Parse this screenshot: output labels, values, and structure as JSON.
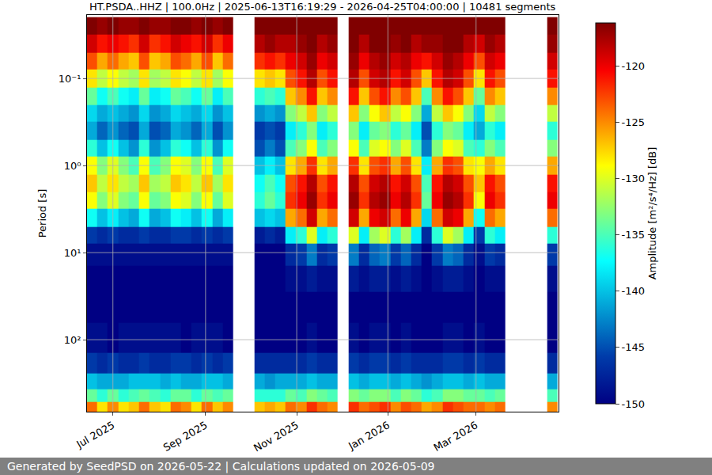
{
  "chart_data": {
    "type": "heatmap",
    "title": "HT.PSDA..HHZ | 100.0Hz | 2025-06-13T16:19:29 - 2026-04-25T04:00:00 | 10481 segments",
    "ylabel": "Period [s]",
    "colorbar_label": "Amplitude [m²/s⁴/Hz] [dB]",
    "footer": "Generated by SeedPSD on 2026-05-22 | Calculations updated on 2026-05-09",
    "log": "y",
    "grid": true,
    "xlim": [
      "2025-06-13 16:19:29",
      "2026-04-25 04:00:00"
    ],
    "xticks": [
      {
        "value": "2025-07-01",
        "label": "Jul 2025"
      },
      {
        "value": "2025-09-01",
        "label": "Sep 2025"
      },
      {
        "value": "2025-11-01",
        "label": "Nov 2025"
      },
      {
        "value": "2026-01-01",
        "label": "Jan 2026"
      },
      {
        "value": "2026-03-01",
        "label": "Mar 2026"
      }
    ],
    "ylim": [
      671,
      0.0187
    ],
    "yticks": [
      {
        "value": 0.1,
        "label": "10⁻¹"
      },
      {
        "value": 1,
        "label": "10⁰"
      },
      {
        "value": 10,
        "label": "10¹"
      },
      {
        "value": 100,
        "label": "10²"
      }
    ],
    "zlim": [
      -150,
      -116.2
    ],
    "zticks": [
      -150,
      -145,
      -140,
      -135,
      -130,
      -125,
      -120
    ],
    "x": [
      "2025-06-17",
      "2025-06-24",
      "2025-07-01",
      "2025-07-08",
      "2025-07-15",
      "2025-07-22",
      "2025-07-29",
      "2025-08-05",
      "2025-08-12",
      "2025-08-19",
      "2025-08-26",
      "2025-09-02",
      "2025-09-09",
      "2025-09-16",
      "2025-09-23",
      "2025-09-30",
      "2025-10-07",
      "2025-10-14",
      "2025-10-21",
      "2025-10-28",
      "2025-11-04",
      "2025-11-11",
      "2025-11-18",
      "2025-11-25",
      "2025-12-02",
      "2025-12-09",
      "2025-12-16",
      "2025-12-23",
      "2025-12-30",
      "2026-01-06",
      "2026-01-13",
      "2026-01-20",
      "2026-01-27",
      "2026-02-03",
      "2026-02-10",
      "2026-02-17",
      "2026-02-24",
      "2026-03-03",
      "2026-03-10",
      "2026-03-17",
      "2026-03-24",
      "2026-03-31",
      "2026-04-07",
      "2026-04-14",
      "2026-04-21"
    ],
    "y": [
      0.025,
      0.04,
      0.063,
      0.1,
      0.16,
      0.25,
      0.4,
      0.63,
      1,
      1.6,
      2.5,
      4,
      6.3,
      10,
      20,
      40,
      100,
      200,
      300,
      450,
      600
    ],
    "cells": [
      [
        -116,
        -119,
        -123,
        -128,
        -134,
        -139,
        -141,
        -136,
        -129,
        -127,
        -129,
        -137,
        -146,
        -149,
        -150,
        -150,
        -149,
        -146,
        -140,
        -134,
        -124
      ],
      [
        -117,
        -121,
        -126,
        -131,
        -137,
        -141,
        -144,
        -140,
        -133,
        -131,
        -133,
        -140,
        -147,
        -149,
        -150,
        -150,
        -149,
        -147,
        -141,
        -136,
        -128
      ],
      [
        -116,
        -120,
        -124,
        -129,
        -135,
        -140,
        -142,
        -137,
        -130,
        -128,
        -130,
        -138,
        -146,
        -149,
        -150,
        -150,
        -150,
        -146,
        -141,
        -134,
        -125
      ],
      [
        -117,
        -121,
        -126,
        -131,
        -137,
        -141,
        -144,
        -140,
        -133,
        -131,
        -133,
        -140,
        -147,
        -149,
        -150,
        -150,
        -149,
        -147,
        -141,
        -136,
        -128
      ],
      [
        -117,
        -122,
        -127,
        -132,
        -138,
        -142,
        -145,
        -142,
        -135,
        -132,
        -134,
        -141,
        -147,
        -149,
        -150,
        -150,
        -149,
        -147,
        -140,
        -135,
        -127
      ],
      [
        -116,
        -119,
        -123,
        -128,
        -134,
        -139,
        -141,
        -136,
        -129,
        -127,
        -129,
        -137,
        -146,
        -149,
        -150,
        -150,
        -149,
        -146,
        -140,
        -134,
        -124
      ],
      [
        -117,
        -122,
        -127,
        -132,
        -138,
        -142,
        -145,
        -142,
        -135,
        -132,
        -134,
        -141,
        -147,
        -149,
        -150,
        -150,
        -149,
        -147,
        -140,
        -135,
        -127
      ],
      [
        -117,
        -121,
        -126,
        -131,
        -137,
        -141,
        -144,
        -140,
        -133,
        -131,
        -133,
        -140,
        -147,
        -149,
        -150,
        -150,
        -149,
        -147,
        -141,
        -136,
        -128
      ],
      [
        -116,
        -119,
        -123,
        -128,
        -134,
        -139,
        -141,
        -136,
        -129,
        -127,
        -129,
        -137,
        -146,
        -149,
        -150,
        -150,
        -149,
        -146,
        -140,
        -134,
        -124
      ],
      [
        -116,
        -120,
        -124,
        -129,
        -135,
        -140,
        -142,
        -137,
        -130,
        -128,
        -130,
        -138,
        -146,
        -149,
        -150,
        -150,
        -150,
        -146,
        -141,
        -134,
        -125
      ],
      [
        -117,
        -121,
        -126,
        -131,
        -137,
        -141,
        -144,
        -140,
        -133,
        -131,
        -133,
        -140,
        -147,
        -149,
        -150,
        -150,
        -149,
        -147,
        -141,
        -136,
        -128
      ],
      [
        -116,
        -119,
        -123,
        -128,
        -134,
        -139,
        -141,
        -136,
        -129,
        -127,
        -129,
        -137,
        -146,
        -149,
        -150,
        -150,
        -149,
        -146,
        -140,
        -134,
        -124
      ],
      [
        -117,
        -122,
        -127,
        -132,
        -138,
        -142,
        -145,
        -142,
        -135,
        -132,
        -134,
        -141,
        -147,
        -149,
        -150,
        -150,
        -149,
        -147,
        -140,
        -135,
        -127
      ],
      [
        -116,
        -120,
        -124,
        -129,
        -135,
        -140,
        -142,
        -137,
        -130,
        -128,
        -130,
        -138,
        -146,
        -149,
        -150,
        -150,
        -150,
        -146,
        -141,
        -134,
        -125
      ],
      [
        null,
        null,
        null,
        null,
        null,
        null,
        null,
        null,
        null,
        null,
        null,
        null,
        null,
        null,
        null,
        null,
        null,
        null,
        null,
        null,
        null
      ],
      [
        null,
        null,
        null,
        null,
        null,
        null,
        null,
        null,
        null,
        null,
        null,
        null,
        null,
        null,
        null,
        null,
        null,
        null,
        null,
        null,
        null
      ],
      [
        -116,
        -118,
        -122,
        -128,
        -136,
        -142,
        -146,
        -145,
        -140,
        -137,
        -136,
        -140,
        -148,
        -150,
        -150,
        -150,
        -150,
        -147,
        -141,
        -136,
        -127
      ],
      [
        -116,
        -117,
        -121,
        -127,
        -135,
        -141,
        -145,
        -143,
        -138,
        -135,
        -134,
        -139,
        -147,
        -150,
        -150,
        -150,
        -150,
        -147,
        -142,
        -136,
        -126
      ],
      [
        -116,
        -118,
        -122,
        -128,
        -136,
        -142,
        -146,
        -145,
        -140,
        -137,
        -136,
        -140,
        -148,
        -150,
        -150,
        -150,
        -150,
        -147,
        -141,
        -136,
        -127
      ],
      [
        -116,
        -118,
        -120,
        -123,
        -127,
        -133,
        -138,
        -135,
        -128,
        -123,
        -122,
        -126,
        -138,
        -147,
        -149,
        -150,
        -150,
        -147,
        -141,
        -134,
        -124
      ],
      [
        -116,
        -117,
        -119,
        -121,
        -125,
        -131,
        -136,
        -133,
        -126,
        -121,
        -120,
        -124,
        -136,
        -146,
        -149,
        -150,
        -150,
        -147,
        -141,
        -135,
        -125
      ],
      [
        -116,
        -116,
        -117,
        -118,
        -121,
        -127,
        -133,
        -129,
        -122,
        -118,
        -117,
        -119,
        -130,
        -143,
        -148,
        -150,
        -149,
        -146,
        -140,
        -133,
        -122
      ],
      [
        -116,
        -118,
        -120,
        -123,
        -127,
        -133,
        -138,
        -135,
        -128,
        -123,
        -122,
        -126,
        -138,
        -147,
        -149,
        -150,
        -150,
        -147,
        -141,
        -134,
        -124
      ],
      [
        -116,
        -117,
        -119,
        -121,
        -125,
        -131,
        -136,
        -133,
        -126,
        -121,
        -120,
        -124,
        -136,
        -146,
        -149,
        -150,
        -150,
        -147,
        -141,
        -135,
        -125
      ],
      [
        null,
        null,
        null,
        null,
        null,
        null,
        null,
        null,
        null,
        null,
        null,
        null,
        null,
        null,
        null,
        null,
        null,
        null,
        null,
        null,
        null
      ],
      [
        -116,
        -116,
        -117,
        -118,
        -121,
        -127,
        -133,
        -129,
        -122,
        -118,
        -117,
        -119,
        -130,
        -143,
        -148,
        -150,
        -149,
        -146,
        -140,
        -133,
        -122
      ],
      [
        -116,
        -118,
        -120,
        -123,
        -127,
        -133,
        -138,
        -135,
        -128,
        -123,
        -122,
        -126,
        -138,
        -147,
        -149,
        -150,
        -150,
        -147,
        -141,
        -134,
        -124
      ],
      [
        -116,
        -116,
        -118,
        -119,
        -123,
        -129,
        -134,
        -130,
        -123,
        -119,
        -118,
        -120,
        -132,
        -144,
        -148,
        -150,
        -149,
        -146,
        -140,
        -133,
        -123
      ],
      [
        -116,
        -116,
        -117,
        -118,
        -121,
        -127,
        -133,
        -129,
        -122,
        -118,
        -117,
        -119,
        -130,
        -143,
        -148,
        -150,
        -149,
        -146,
        -140,
        -133,
        -122
      ],
      [
        -116,
        -117,
        -119,
        -121,
        -125,
        -131,
        -136,
        -133,
        -126,
        -121,
        -120,
        -124,
        -136,
        -146,
        -149,
        -150,
        -150,
        -147,
        -141,
        -135,
        -125
      ],
      [
        -116,
        -116,
        -118,
        -119,
        -123,
        -129,
        -134,
        -130,
        -123,
        -119,
        -118,
        -120,
        -132,
        -144,
        -148,
        -150,
        -149,
        -146,
        -140,
        -133,
        -123
      ],
      [
        -116,
        -118,
        -120,
        -123,
        -127,
        -133,
        -138,
        -135,
        -128,
        -123,
        -122,
        -126,
        -138,
        -147,
        -149,
        -150,
        -150,
        -147,
        -141,
        -134,
        -124
      ],
      [
        -116,
        -117,
        -121,
        -127,
        -135,
        -141,
        -145,
        -143,
        -138,
        -135,
        -134,
        -139,
        -147,
        -150,
        -150,
        -150,
        -150,
        -147,
        -142,
        -136,
        -126
      ],
      [
        -116,
        -117,
        -119,
        -121,
        -125,
        -131,
        -136,
        -133,
        -126,
        -121,
        -120,
        -124,
        -136,
        -146,
        -149,
        -150,
        -150,
        -147,
        -141,
        -135,
        -125
      ],
      [
        -116,
        -116,
        -117,
        -118,
        -121,
        -127,
        -133,
        -129,
        -122,
        -118,
        -117,
        -119,
        -130,
        -143,
        -148,
        -150,
        -149,
        -146,
        -140,
        -133,
        -122
      ],
      [
        -116,
        -116,
        -118,
        -119,
        -123,
        -129,
        -134,
        -130,
        -123,
        -119,
        -118,
        -120,
        -132,
        -144,
        -148,
        -150,
        -149,
        -146,
        -140,
        -133,
        -123
      ],
      [
        -116,
        -118,
        -120,
        -123,
        -127,
        -133,
        -138,
        -135,
        -128,
        -123,
        -122,
        -126,
        -138,
        -147,
        -149,
        -150,
        -150,
        -147,
        -141,
        -134,
        -124
      ],
      [
        -116,
        -119,
        -123,
        -128,
        -134,
        -139,
        -141,
        -136,
        -129,
        -127,
        -129,
        -137,
        -146,
        -149,
        -150,
        -150,
        -149,
        -146,
        -140,
        -134,
        -124
      ],
      [
        -116,
        -117,
        -119,
        -121,
        -125,
        -131,
        -136,
        -133,
        -126,
        -121,
        -120,
        -124,
        -136,
        -146,
        -149,
        -150,
        -150,
        -147,
        -141,
        -135,
        -125
      ],
      [
        -116,
        -118,
        -120,
        -123,
        -127,
        -133,
        -138,
        -135,
        -128,
        -123,
        -122,
        -126,
        -138,
        -147,
        -149,
        -150,
        -150,
        -147,
        -141,
        -134,
        -124
      ],
      [
        null,
        null,
        null,
        null,
        null,
        null,
        null,
        null,
        null,
        null,
        null,
        null,
        null,
        null,
        null,
        null,
        null,
        null,
        null,
        null,
        null
      ],
      [
        null,
        null,
        null,
        null,
        null,
        null,
        null,
        null,
        null,
        null,
        null,
        null,
        null,
        null,
        null,
        null,
        null,
        null,
        null,
        null,
        null
      ],
      [
        null,
        null,
        null,
        null,
        null,
        null,
        null,
        null,
        null,
        null,
        null,
        null,
        null,
        null,
        null,
        null,
        null,
        null,
        null,
        null,
        null
      ],
      [
        null,
        null,
        null,
        null,
        null,
        null,
        null,
        null,
        null,
        null,
        null,
        null,
        null,
        null,
        null,
        null,
        null,
        null,
        null,
        null,
        null
      ],
      [
        -116,
        -117,
        -119,
        -121,
        -125,
        -131,
        -136,
        -133,
        -126,
        -121,
        -120,
        -124,
        -136,
        -146,
        -149,
        -150,
        -150,
        -147,
        -141,
        -135,
        -125
      ]
    ]
  }
}
